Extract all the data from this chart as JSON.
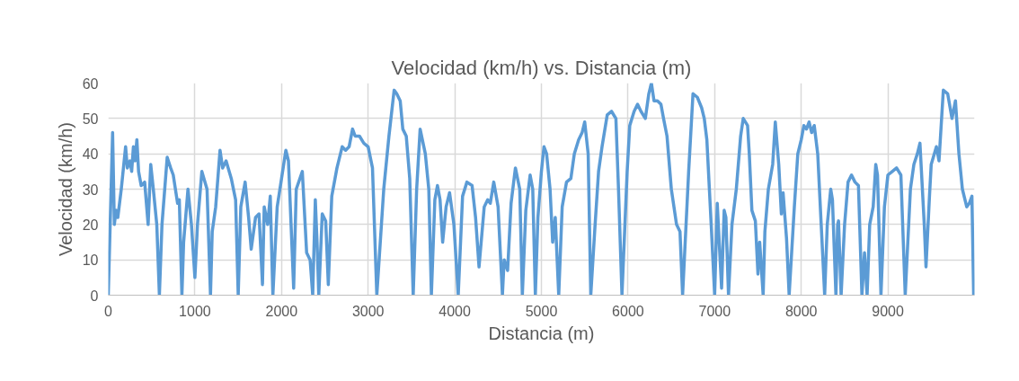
{
  "chart_data": {
    "type": "line",
    "title": "Velocidad (km/h) vs. Distancia (m)",
    "xlabel": "Distancia (m)",
    "ylabel": "Velocidad (km/h)",
    "xlim": [
      0,
      10000
    ],
    "xticks": [
      0,
      1000,
      2000,
      3000,
      4000,
      5000,
      6000,
      7000,
      8000,
      9000
    ],
    "ylim": [
      0,
      60
    ],
    "yticks": [
      0,
      10,
      20,
      30,
      40,
      50,
      60
    ],
    "grid": true,
    "marker": "none",
    "line_style": "solid",
    "series": [
      {
        "color": "#5b9bd5",
        "x": [
          0,
          50,
          70,
          90,
          110,
          150,
          200,
          220,
          250,
          270,
          290,
          310,
          330,
          350,
          380,
          420,
          460,
          490,
          520,
          560,
          590,
          620,
          680,
          720,
          750,
          800,
          820,
          850,
          870,
          920,
          960,
          1000,
          1030,
          1080,
          1140,
          1180,
          1200,
          1240,
          1290,
          1320,
          1360,
          1420,
          1470,
          1500,
          1530,
          1580,
          1620,
          1650,
          1700,
          1740,
          1780,
          1800,
          1840,
          1870,
          1900,
          1950,
          2000,
          2050,
          2080,
          2110,
          2140,
          2170,
          2240,
          2290,
          2330,
          2360,
          2390,
          2410,
          2430,
          2470,
          2510,
          2540,
          2580,
          2640,
          2700,
          2740,
          2780,
          2820,
          2850,
          2900,
          2950,
          3000,
          3050,
          3100,
          3180,
          3240,
          3300,
          3330,
          3370,
          3400,
          3440,
          3480,
          3520,
          3560,
          3600,
          3660,
          3700,
          3730,
          3770,
          3800,
          3830,
          3860,
          3900,
          3940,
          3990,
          4040,
          4090,
          4140,
          4200,
          4240,
          4280,
          4340,
          4380,
          4410,
          4450,
          4500,
          4550,
          4570,
          4610,
          4650,
          4700,
          4750,
          4780,
          4820,
          4870,
          4900,
          4930,
          4960,
          5000,
          5030,
          5060,
          5100,
          5130,
          5160,
          5200,
          5240,
          5290,
          5340,
          5380,
          5430,
          5470,
          5500,
          5540,
          5570,
          5620,
          5660,
          5700,
          5760,
          5810,
          5860,
          5890,
          5930,
          5990,
          6020,
          6070,
          6110,
          6150,
          6200,
          6240,
          6270,
          6300,
          6340,
          6380,
          6410,
          6450,
          6500,
          6560,
          6600,
          6630,
          6700,
          6750,
          6800,
          6850,
          6880,
          6910,
          6960,
          7000,
          7030,
          7080,
          7110,
          7130,
          7160,
          7200,
          7250,
          7300,
          7330,
          7380,
          7400,
          7430,
          7470,
          7500,
          7520,
          7560,
          7580,
          7620,
          7670,
          7700,
          7740,
          7770,
          7790,
          7830,
          7860,
          7920,
          7960,
          8000,
          8030,
          8060,
          8090,
          8120,
          8150,
          8190,
          8230,
          8270,
          8300,
          8340,
          8360,
          8400,
          8420,
          8430,
          8460,
          8500,
          8540,
          8580,
          8620,
          8660,
          8700,
          8730,
          8760,
          8790,
          8830,
          8860,
          8880,
          8920,
          8960,
          9000,
          9050,
          9100,
          9150,
          9200,
          9260,
          9300,
          9340,
          9370,
          9420,
          9440,
          9480,
          9500,
          9560,
          9590,
          9640,
          9690,
          9740,
          9780,
          9820,
          9860,
          9910,
          9940,
          9970,
          9990
        ],
        "values": [
          0,
          46,
          20,
          24,
          22,
          30,
          42,
          36,
          38,
          35,
          42,
          38,
          44,
          35,
          31,
          32,
          20,
          37,
          30,
          20,
          0,
          20,
          39,
          36,
          34,
          26,
          27,
          0,
          15,
          30,
          20,
          5,
          20,
          35,
          30,
          0,
          18,
          25,
          41,
          36,
          38,
          33,
          27,
          0,
          25,
          32,
          22,
          13,
          22,
          23,
          3,
          25,
          20,
          28,
          0,
          25,
          33,
          41,
          38,
          20,
          2,
          30,
          35,
          12,
          10,
          0,
          27,
          15,
          0,
          23,
          21,
          3,
          28,
          36,
          42,
          41,
          42,
          47,
          45,
          45,
          43,
          42,
          36,
          0,
          30,
          45,
          58,
          57,
          55,
          47,
          45,
          33,
          0,
          30,
          47,
          40,
          30,
          0,
          27,
          31,
          27,
          15,
          25,
          29,
          20,
          0,
          28,
          32,
          31,
          22,
          8,
          25,
          27,
          26,
          32,
          25,
          0,
          10,
          7,
          26,
          36,
          30,
          0,
          24,
          34,
          30,
          0,
          22,
          35,
          42,
          40,
          30,
          15,
          22,
          0,
          25,
          32,
          33,
          40,
          44,
          46,
          49,
          40,
          0,
          20,
          35,
          42,
          51,
          52,
          50,
          30,
          0,
          35,
          48,
          52,
          54,
          52,
          50,
          57,
          60,
          55,
          55,
          54,
          50,
          45,
          30,
          20,
          18,
          0,
          35,
          57,
          56,
          53,
          50,
          44,
          20,
          0,
          26,
          2,
          24,
          22,
          0,
          20,
          30,
          45,
          50,
          48,
          40,
          24,
          21,
          6,
          15,
          0,
          18,
          30,
          37,
          49,
          37,
          23,
          29,
          16,
          0,
          25,
          40,
          44,
          48,
          47,
          49,
          46,
          48,
          40,
          20,
          0,
          20,
          30,
          27,
          0,
          20,
          21,
          0,
          20,
          32,
          34,
          32,
          31,
          0,
          12,
          0,
          20,
          25,
          37,
          34,
          0,
          25,
          34,
          35,
          36,
          34,
          0,
          30,
          37,
          40,
          43,
          20,
          8,
          28,
          37,
          42,
          38,
          58,
          57,
          50,
          55,
          40,
          30,
          25,
          26,
          28,
          0
        ]
      }
    ]
  }
}
